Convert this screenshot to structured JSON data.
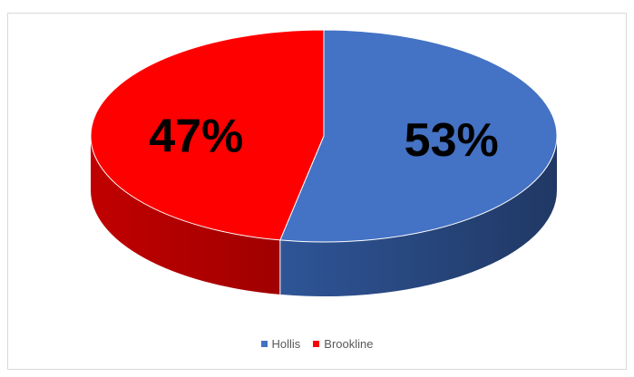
{
  "chart_data": {
    "type": "pie",
    "title": "",
    "series": [
      {
        "name": "Hollis",
        "value": 53,
        "label": "53%",
        "color": "#4472C4",
        "side_color": "#203864"
      },
      {
        "name": "Brookline",
        "value": 47,
        "label": "47%",
        "color": "#FF0000",
        "side_color": "#A00000"
      }
    ],
    "legend": "bottom",
    "style": "3d"
  }
}
